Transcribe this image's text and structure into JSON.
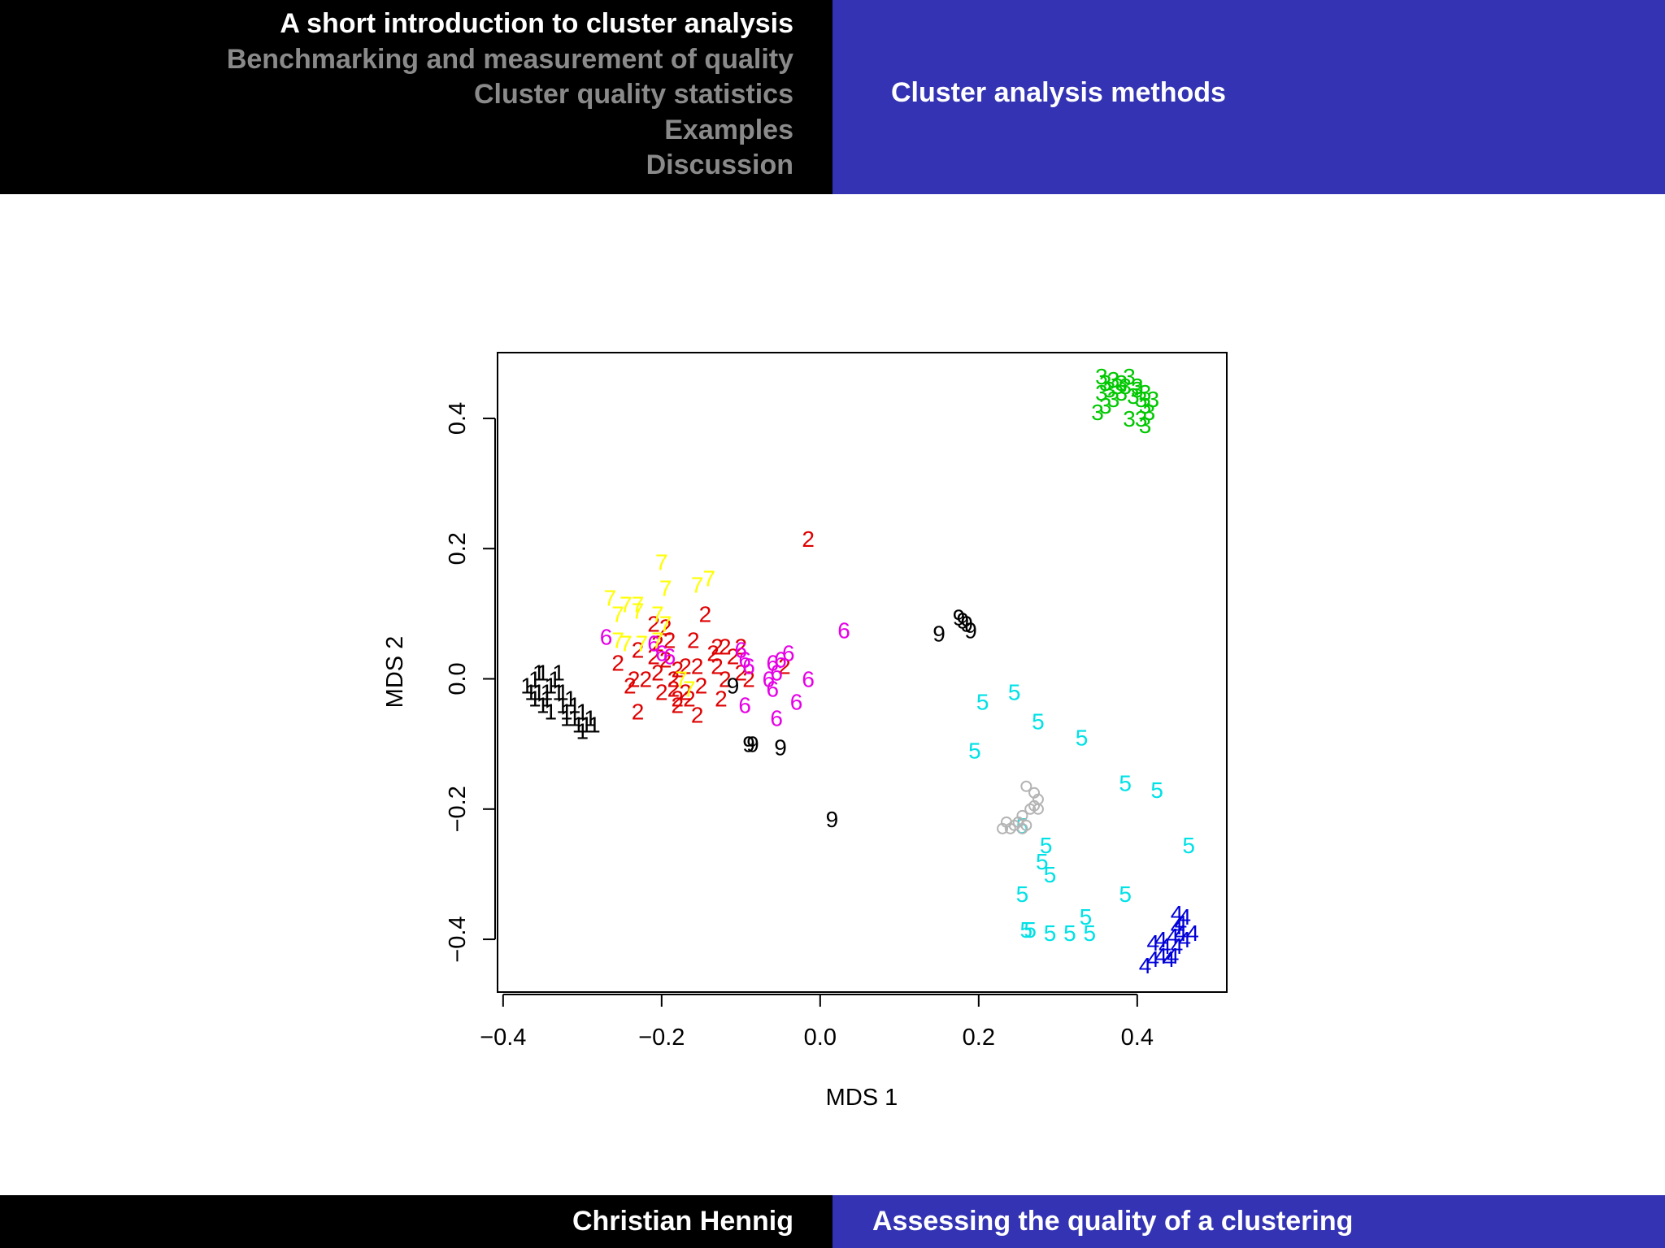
{
  "header": {
    "nav_items": [
      "A short introduction to cluster analysis",
      "Benchmarking and measurement of quality",
      "Cluster quality statistics",
      "Examples",
      "Discussion"
    ],
    "section_title": "Cluster analysis methods"
  },
  "footer": {
    "author": "Christian Hennig",
    "talk_title": "Assessing the quality of a clustering"
  },
  "chart_data": {
    "type": "scatter",
    "xlabel": "MDS 1",
    "ylabel": "MDS 2",
    "xlim": [
      -0.407,
      0.513
    ],
    "ylim": [
      -0.481,
      0.501
    ],
    "xticks": [
      -0.4,
      -0.2,
      0.0,
      0.2,
      0.4
    ],
    "yticks": [
      -0.4,
      -0.2,
      0.0,
      0.2,
      0.4
    ],
    "xtick_labels": [
      "−0.4",
      "−0.2",
      "0.0",
      "0.2",
      "0.4"
    ],
    "ytick_labels": [
      "−0.4",
      "−0.2",
      "0.0",
      "0.2",
      "0.4"
    ],
    "grid": false,
    "marker": "cluster-number-glyph",
    "series": [
      {
        "label": "1",
        "color": "#000000",
        "points": [
          [
            -0.37,
            -0.01
          ],
          [
            -0.36,
            0.0
          ],
          [
            -0.355,
            -0.02
          ],
          [
            -0.35,
            0.01
          ],
          [
            -0.345,
            -0.03
          ],
          [
            -0.34,
            -0.01
          ],
          [
            -0.335,
            0.0
          ],
          [
            -0.33,
            -0.02
          ],
          [
            -0.325,
            -0.04
          ],
          [
            -0.32,
            -0.05
          ],
          [
            -0.315,
            -0.03
          ],
          [
            -0.31,
            -0.06
          ],
          [
            -0.305,
            -0.07
          ],
          [
            -0.3,
            -0.05
          ],
          [
            -0.295,
            -0.07
          ],
          [
            -0.29,
            -0.06
          ],
          [
            -0.285,
            -0.07
          ],
          [
            -0.36,
            -0.03
          ],
          [
            -0.35,
            -0.04
          ],
          [
            -0.34,
            -0.05
          ],
          [
            -0.33,
            0.01
          ],
          [
            -0.325,
            -0.02
          ],
          [
            -0.31,
            -0.04
          ],
          [
            -0.365,
            -0.02
          ],
          [
            -0.355,
            0.01
          ],
          [
            -0.345,
            -0.02
          ],
          [
            -0.32,
            -0.06
          ],
          [
            -0.3,
            -0.08
          ]
        ]
      },
      {
        "label": "2",
        "color": "#df0000",
        "points": [
          [
            -0.015,
            0.215
          ],
          [
            -0.145,
            0.1
          ],
          [
            -0.21,
            0.085
          ],
          [
            -0.195,
            0.08
          ],
          [
            -0.19,
            0.06
          ],
          [
            -0.205,
            0.055
          ],
          [
            -0.16,
            0.06
          ],
          [
            -0.23,
            0.045
          ],
          [
            -0.255,
            0.025
          ],
          [
            -0.21,
            0.035
          ],
          [
            -0.195,
            0.03
          ],
          [
            -0.18,
            0.015
          ],
          [
            -0.17,
            0.02
          ],
          [
            -0.155,
            0.02
          ],
          [
            -0.13,
            0.05
          ],
          [
            -0.12,
            0.05
          ],
          [
            -0.1,
            0.05
          ],
          [
            -0.135,
            0.04
          ],
          [
            -0.11,
            0.035
          ],
          [
            -0.13,
            0.02
          ],
          [
            -0.1,
            0.01
          ],
          [
            -0.09,
            0.0
          ],
          [
            -0.12,
            0.0
          ],
          [
            -0.15,
            -0.01
          ],
          [
            -0.17,
            -0.02
          ],
          [
            -0.18,
            -0.03
          ],
          [
            -0.24,
            -0.01
          ],
          [
            -0.235,
            0.0
          ],
          [
            -0.22,
            0.0
          ],
          [
            -0.205,
            0.01
          ],
          [
            -0.2,
            -0.02
          ],
          [
            -0.185,
            -0.015
          ],
          [
            -0.165,
            -0.03
          ],
          [
            -0.125,
            -0.03
          ],
          [
            -0.18,
            -0.04
          ],
          [
            -0.155,
            -0.055
          ],
          [
            -0.23,
            -0.05
          ],
          [
            -0.045,
            0.02
          ],
          [
            -0.185,
            0.0
          ]
        ]
      },
      {
        "label": "3",
        "color": "#00c800",
        "points": [
          [
            0.355,
            0.465
          ],
          [
            0.37,
            0.46
          ],
          [
            0.38,
            0.455
          ],
          [
            0.39,
            0.465
          ],
          [
            0.4,
            0.45
          ],
          [
            0.41,
            0.44
          ],
          [
            0.42,
            0.43
          ],
          [
            0.355,
            0.44
          ],
          [
            0.365,
            0.445
          ],
          [
            0.375,
            0.45
          ],
          [
            0.385,
            0.45
          ],
          [
            0.395,
            0.435
          ],
          [
            0.405,
            0.43
          ],
          [
            0.41,
            0.42
          ],
          [
            0.415,
            0.41
          ],
          [
            0.36,
            0.42
          ],
          [
            0.35,
            0.41
          ],
          [
            0.39,
            0.4
          ],
          [
            0.405,
            0.4
          ],
          [
            0.41,
            0.39
          ],
          [
            0.37,
            0.43
          ],
          [
            0.4,
            0.445
          ],
          [
            0.38,
            0.44
          ],
          [
            0.36,
            0.455
          ]
        ]
      },
      {
        "label": "4",
        "color": "#0000d8",
        "points": [
          [
            0.45,
            -0.36
          ],
          [
            0.46,
            -0.365
          ],
          [
            0.455,
            -0.375
          ],
          [
            0.47,
            -0.39
          ],
          [
            0.455,
            -0.39
          ],
          [
            0.445,
            -0.395
          ],
          [
            0.43,
            -0.4
          ],
          [
            0.42,
            -0.405
          ],
          [
            0.435,
            -0.41
          ],
          [
            0.45,
            -0.41
          ],
          [
            0.445,
            -0.425
          ],
          [
            0.43,
            -0.425
          ],
          [
            0.42,
            -0.43
          ],
          [
            0.44,
            -0.43
          ],
          [
            0.41,
            -0.44
          ],
          [
            0.46,
            -0.4
          ],
          [
            0.45,
            -0.38
          ]
        ]
      },
      {
        "label": "5",
        "color": "#00e1e6",
        "points": [
          [
            0.245,
            -0.02
          ],
          [
            0.205,
            -0.035
          ],
          [
            0.275,
            -0.065
          ],
          [
            0.33,
            -0.09
          ],
          [
            0.195,
            -0.11
          ],
          [
            0.385,
            -0.16
          ],
          [
            0.425,
            -0.17
          ],
          [
            0.465,
            -0.255
          ],
          [
            0.285,
            -0.255
          ],
          [
            0.28,
            -0.28
          ],
          [
            0.29,
            -0.3
          ],
          [
            0.255,
            -0.33
          ],
          [
            0.385,
            -0.33
          ],
          [
            0.335,
            -0.365
          ],
          [
            0.26,
            -0.385
          ],
          [
            0.265,
            -0.385
          ],
          [
            0.29,
            -0.39
          ],
          [
            0.315,
            -0.39
          ],
          [
            0.34,
            -0.39
          ],
          [
            0.255,
            -0.225
          ]
        ]
      },
      {
        "label": "6",
        "color": "#e600e6",
        "points": [
          [
            0.03,
            0.075
          ],
          [
            -0.27,
            0.065
          ],
          [
            -0.21,
            0.055
          ],
          [
            -0.1,
            0.045
          ],
          [
            -0.095,
            0.03
          ],
          [
            -0.09,
            0.02
          ],
          [
            -0.06,
            0.025
          ],
          [
            -0.05,
            0.03
          ],
          [
            -0.04,
            0.04
          ],
          [
            -0.065,
            0.0
          ],
          [
            -0.055,
            0.01
          ],
          [
            -0.015,
            0.0
          ],
          [
            -0.06,
            -0.015
          ],
          [
            -0.03,
            -0.035
          ],
          [
            -0.095,
            -0.04
          ],
          [
            -0.055,
            -0.06
          ],
          [
            -0.2,
            0.04
          ],
          [
            -0.19,
            0.035
          ]
        ]
      },
      {
        "label": "7",
        "color": "#ffff00",
        "points": [
          [
            -0.2,
            0.18
          ],
          [
            -0.195,
            0.14
          ],
          [
            -0.155,
            0.145
          ],
          [
            -0.14,
            0.155
          ],
          [
            -0.265,
            0.125
          ],
          [
            -0.245,
            0.115
          ],
          [
            -0.23,
            0.115
          ],
          [
            -0.255,
            0.1
          ],
          [
            -0.23,
            0.105
          ],
          [
            -0.205,
            0.1
          ],
          [
            -0.195,
            0.085
          ],
          [
            -0.255,
            0.06
          ],
          [
            -0.245,
            0.055
          ],
          [
            -0.225,
            0.055
          ],
          [
            -0.205,
            0.06
          ],
          [
            -0.165,
            -0.015
          ],
          [
            -0.175,
            0.0
          ]
        ]
      },
      {
        "label": "8",
        "color": "#b4b4b4",
        "points": [
          [
            0.26,
            -0.165
          ],
          [
            0.27,
            -0.175
          ],
          [
            0.275,
            -0.185
          ],
          [
            0.27,
            -0.195
          ],
          [
            0.275,
            -0.2
          ],
          [
            0.265,
            -0.2
          ],
          [
            0.255,
            -0.21
          ],
          [
            0.25,
            -0.22
          ],
          [
            0.245,
            -0.225
          ],
          [
            0.235,
            -0.22
          ],
          [
            0.23,
            -0.23
          ],
          [
            0.24,
            -0.23
          ],
          [
            0.255,
            -0.23
          ],
          [
            0.26,
            -0.225
          ]
        ]
      },
      {
        "label": "9",
        "color": "#000000",
        "points": [
          [
            0.175,
            0.095
          ],
          [
            0.18,
            0.09
          ],
          [
            0.185,
            0.085
          ],
          [
            0.15,
            0.07
          ],
          [
            0.19,
            0.075
          ],
          [
            -0.11,
            -0.01
          ],
          [
            -0.09,
            -0.1
          ],
          [
            -0.085,
            -0.1
          ],
          [
            -0.05,
            -0.105
          ],
          [
            0.015,
            -0.215
          ]
        ]
      }
    ]
  }
}
